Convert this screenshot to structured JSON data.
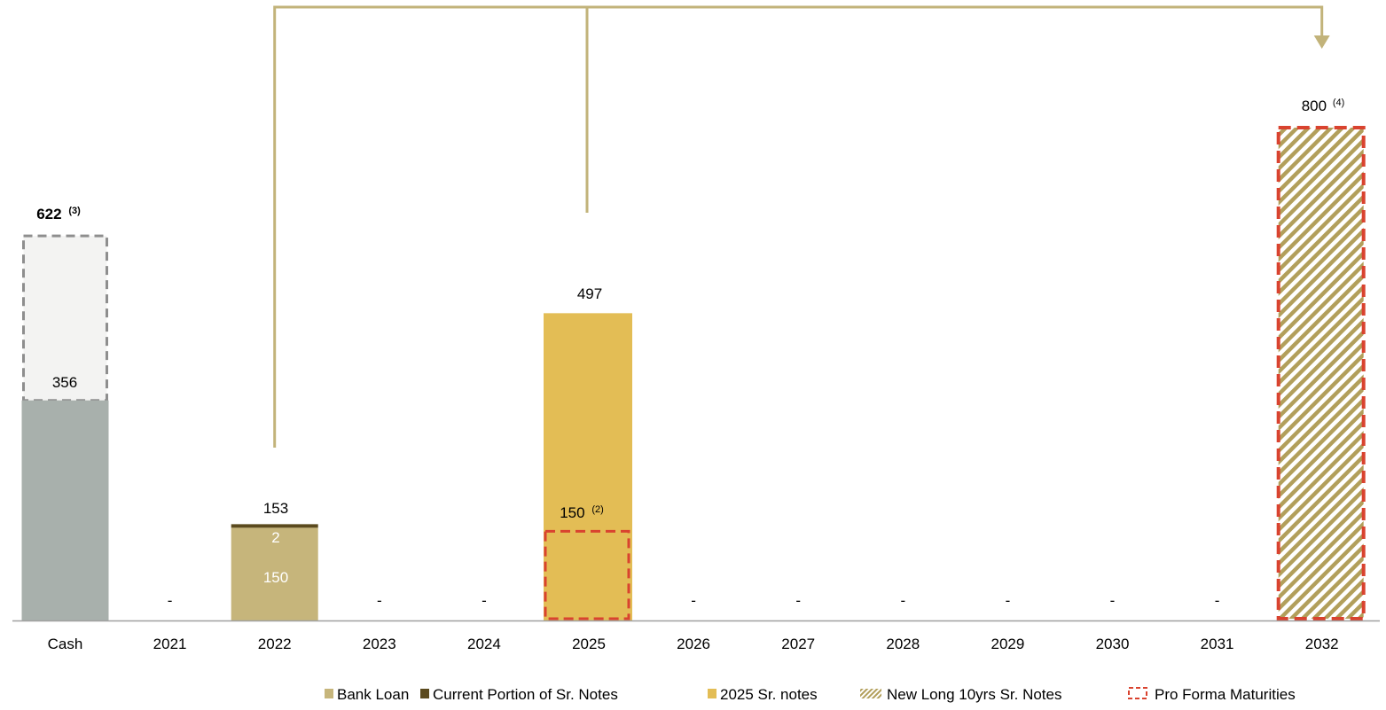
{
  "chart_data": {
    "type": "bar",
    "categories": [
      "Cash",
      "2021",
      "2022",
      "2023",
      "2024",
      "2025",
      "2026",
      "2027",
      "2028",
      "2029",
      "2030",
      "2031",
      "2032"
    ],
    "series": [
      {
        "name": "Bank Loan",
        "values": [
          0,
          0,
          150,
          0,
          0,
          0,
          0,
          0,
          0,
          0,
          0,
          0,
          0
        ]
      },
      {
        "name": "Current Portion of Sr. Notes",
        "values": [
          0,
          0,
          2,
          0,
          0,
          0,
          0,
          0,
          0,
          0,
          0,
          0,
          0
        ]
      },
      {
        "name": "2025 Sr. notes",
        "values": [
          0,
          0,
          0,
          0,
          0,
          497,
          0,
          0,
          0,
          0,
          0,
          0,
          0
        ]
      },
      {
        "name": "New Long 10yrs Sr. Notes",
        "values": [
          0,
          0,
          0,
          0,
          0,
          0,
          0,
          0,
          0,
          0,
          0,
          0,
          800
        ]
      },
      {
        "name": "Pro Forma Maturities",
        "values": [
          0,
          0,
          0,
          0,
          0,
          150,
          0,
          0,
          0,
          0,
          0,
          0,
          800
        ]
      }
    ],
    "cash": {
      "actual": 356,
      "pro_forma": 622
    },
    "labels": {
      "cash_actual": "356",
      "cash_pro_forma": "622",
      "cash_pro_forma_note": "(3)",
      "y2022_total": "153",
      "y2022_current": "2",
      "y2022_bank": "150",
      "y2025_total": "497",
      "y2025_pro_forma": "150",
      "y2025_pro_forma_note": "(2)",
      "y2032_total": "800",
      "y2032_note": "(4)"
    },
    "empty_marker": "-",
    "empty_categories": [
      "2021",
      "2023",
      "2024",
      "2026",
      "2027",
      "2028",
      "2029",
      "2030",
      "2031"
    ],
    "legend": [
      {
        "name": "Bank Loan",
        "swatch": "solid",
        "color": "#c6b57b"
      },
      {
        "name": "Current Portion of Sr. Notes",
        "swatch": "solid",
        "color": "#5b4a1e"
      },
      {
        "name": "2025 Sr. notes",
        "swatch": "solid",
        "color": "#e3bd55"
      },
      {
        "name": "New Long 10yrs Sr. Notes",
        "swatch": "hatch",
        "color": "#b29f5b"
      },
      {
        "name": "Pro Forma Maturities",
        "swatch": "dashed",
        "color": "#d9432f"
      }
    ],
    "legend_position": "bottom-right",
    "ylim": [
      0,
      850
    ],
    "grid": false,
    "colors": {
      "cash": "#a8b0ac",
      "cash_pro_forma_fill": "#f3f3f2",
      "cash_pro_forma_border": "#8e8e8e",
      "bank_loan": "#c6b57b",
      "current_portion": "#5b4a1e",
      "sr_notes_2025": "#e3bd55",
      "new_notes_hatch": "#b29f5b",
      "pro_forma_border": "#d9432f",
      "connector": "#c2b37a",
      "axis": "#a0a0a0",
      "text": "#000000"
    }
  }
}
